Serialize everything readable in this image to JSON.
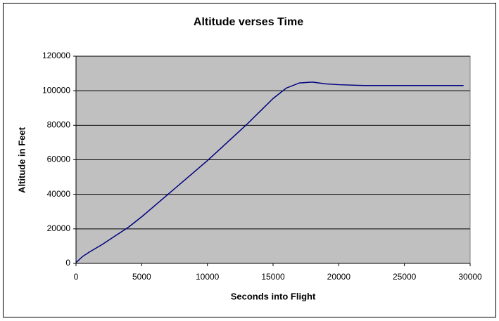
{
  "chart_data": {
    "type": "line",
    "title": "Altitude verses Time",
    "x_label": "Seconds into Flight",
    "y_label": "Altitude in Feet",
    "x": [
      0,
      500,
      1000,
      2000,
      3000,
      4000,
      5000,
      6000,
      7000,
      8000,
      9000,
      10000,
      11000,
      12000,
      13000,
      14000,
      15000,
      16000,
      17000,
      18000,
      19000,
      20000,
      22000,
      24000,
      26000,
      28000,
      29500
    ],
    "series": [
      {
        "name": "Altitude",
        "color": "#000080",
        "values": [
          500,
          4000,
          6500,
          11000,
          16000,
          21000,
          27000,
          33500,
          40000,
          46500,
          53000,
          59500,
          66500,
          73500,
          80500,
          88000,
          95500,
          101500,
          104500,
          105000,
          104000,
          103500,
          103000,
          103000,
          103000,
          103000,
          103000
        ]
      }
    ],
    "xlim": [
      0,
      30000
    ],
    "xticks": [
      0,
      5000,
      10000,
      15000,
      20000,
      25000,
      30000
    ],
    "ylim": [
      0,
      120000
    ],
    "yticks": [
      0,
      20000,
      40000,
      60000,
      80000,
      100000,
      120000
    ],
    "grid": true,
    "plot_background": "#c0c0c0"
  }
}
